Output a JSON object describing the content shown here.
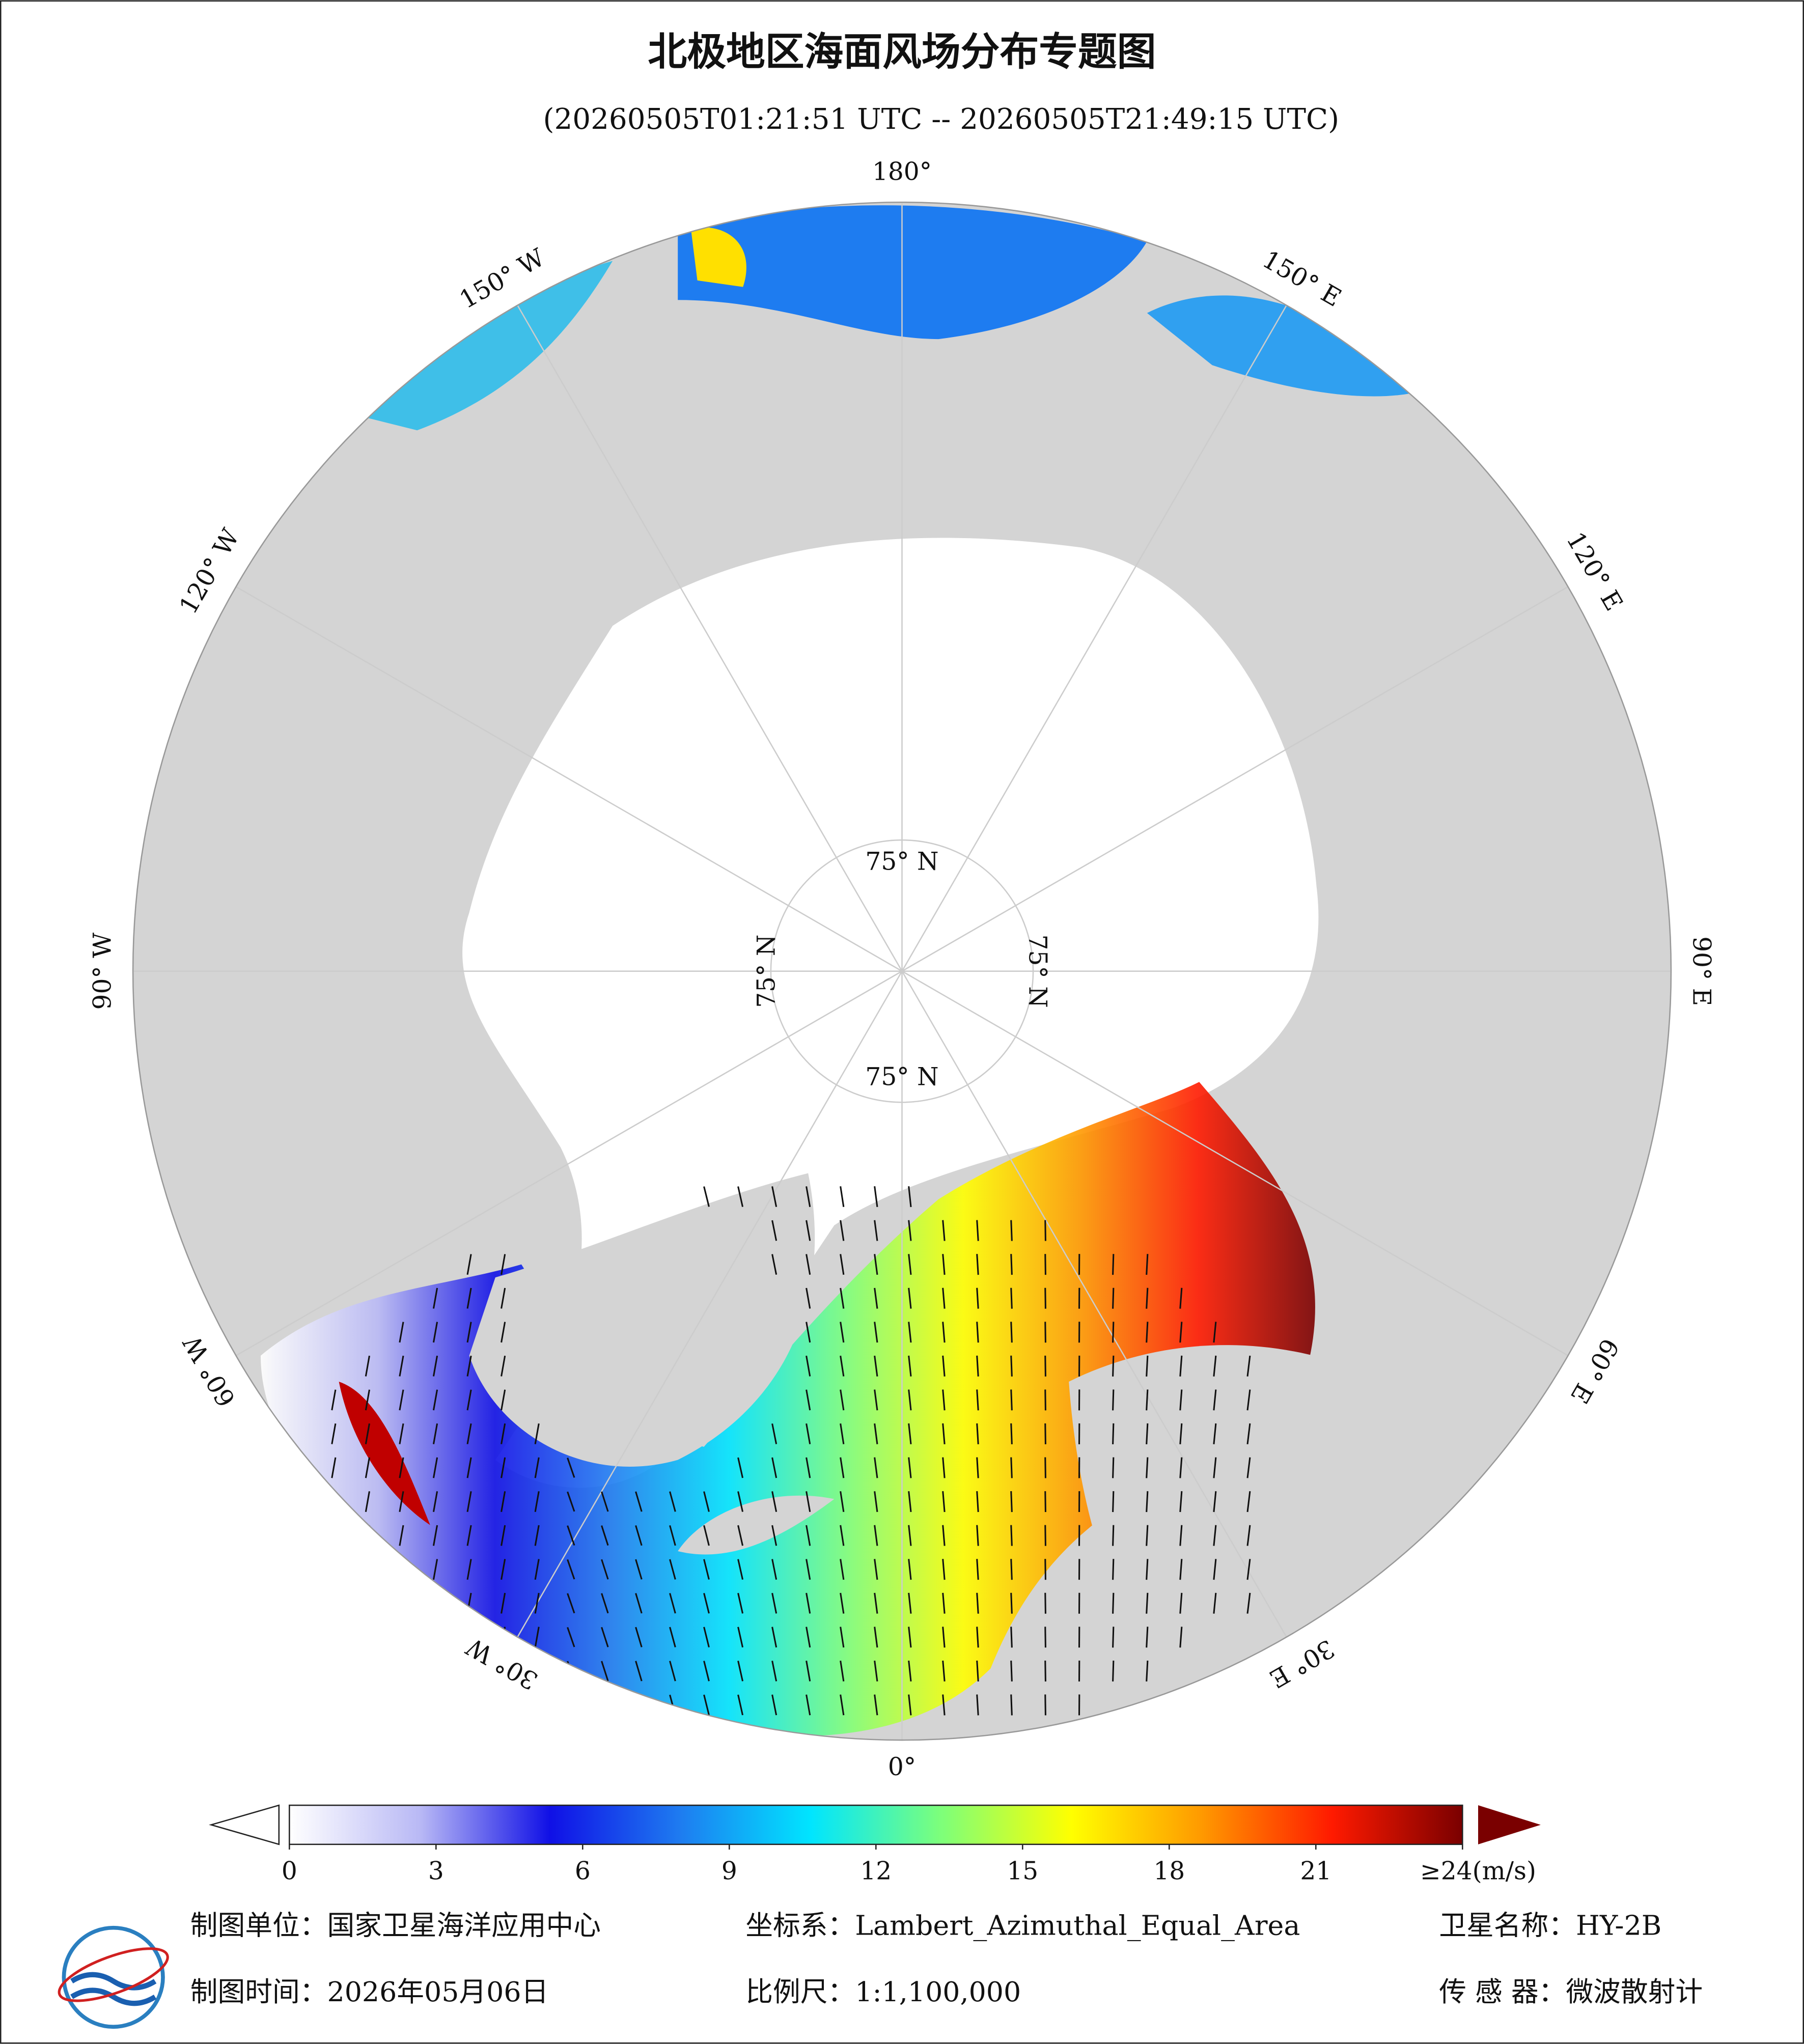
{
  "title": "北极地区海面风场分布专题图",
  "subtitle": "(20260505T01:21:51 UTC -- 20260505T21:49:15 UTC)",
  "map": {
    "meridians": [
      {
        "value": 180,
        "label": "180°"
      },
      {
        "value": -150,
        "label": "150° W"
      },
      {
        "value": -120,
        "label": "120° W"
      },
      {
        "value": -90,
        "label": "90° W"
      },
      {
        "value": -60,
        "label": "60° W"
      },
      {
        "value": -30,
        "label": "30° W"
      },
      {
        "value": 0,
        "label": "0°"
      },
      {
        "value": 30,
        "label": "30° E"
      },
      {
        "value": 60,
        "label": "60° E"
      },
      {
        "value": 90,
        "label": "90° E"
      },
      {
        "value": 120,
        "label": "120° E"
      },
      {
        "value": 150,
        "label": "150° E"
      }
    ],
    "parallel": {
      "value": 75,
      "label": "75° N"
    }
  },
  "colorbar": {
    "lim": [
      0,
      24
    ],
    "ticks": [
      0,
      3,
      6,
      9,
      12,
      15,
      18,
      21
    ],
    "max_label": "≥24(m/s)",
    "colors": [
      "#ffffff",
      "#b9b9f5",
      "#1010e6",
      "#1e7cf0",
      "#00e5ff",
      "#7dff7a",
      "#ffff00",
      "#ff9900",
      "#ff1a00",
      "#7a0000"
    ]
  },
  "footer": {
    "unit": "制图单位：国家卫星海洋应用中心",
    "crs": "坐标系：Lambert_Azimuthal_Equal_Area",
    "satellite": "卫星名称：HY-2B",
    "date": "制图时间：2026年05月06日",
    "scale": "比例尺：1:1,100,000",
    "sensor": "传 感 器：微波散射计"
  }
}
